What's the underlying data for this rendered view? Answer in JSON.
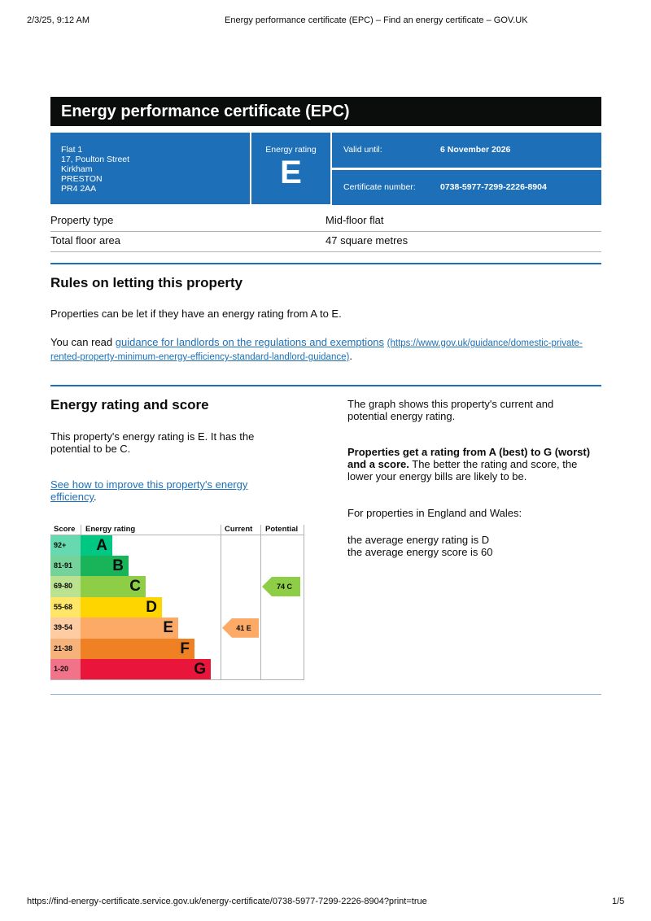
{
  "browser": {
    "datetime": "2/3/25, 9:12 AM",
    "page_title": "Energy performance certificate (EPC) – Find an energy certificate – GOV.UK",
    "url": "https://find-energy-certificate.service.gov.uk/energy-certificate/0738-5977-7299-2226-8904?print=true",
    "page_number": "1/5"
  },
  "certificate": {
    "title": "Energy performance certificate (EPC)",
    "address": [
      "Flat 1",
      "17, Poulton Street",
      "Kirkham",
      "PRESTON",
      "PR4 2AA"
    ],
    "rating_label": "Energy rating",
    "rating": "E",
    "valid_until_label": "Valid until:",
    "valid_until": "6 November 2026",
    "cert_number_label": "Certificate number:",
    "cert_number": "0738-5977-7299-2226-8904"
  },
  "property": [
    {
      "label": "Property type",
      "value": "Mid-floor flat"
    },
    {
      "label": "Total floor area",
      "value": "47 square metres"
    }
  ],
  "rules": {
    "heading": "Rules on letting this property",
    "para1": "Properties can be let if they have an energy rating from A to E.",
    "para2_prefix": "You can read ",
    "link": "guidance for landlords on the regulations and exemptions",
    "link_url": "(https://www.gov.uk/guidance/domestic-private-rented-property-minimum-energy-efficiency-standard-landlord-guidance)",
    "para2_suffix": "."
  },
  "energy": {
    "heading": "Energy rating and score",
    "para1": "This property's energy rating is E. It has the potential to be C.",
    "link": "See how to improve this property's energy efficiency",
    "link_suffix": ".",
    "right_para1": "The graph shows this property's current and potential energy rating.",
    "right_bold": "Properties get a rating from A (best) to G (worst) and a score.",
    "right_para2": " The better the rating and score, the lower your energy bills are likely to be.",
    "right_para3": "For properties in England and Wales:",
    "avg_rating": "the average energy rating is D",
    "avg_score": "the average energy score is 60"
  },
  "chart_data": {
    "type": "table",
    "headers": [
      "Score",
      "Energy rating",
      "Current",
      "Potential"
    ],
    "bands": [
      {
        "score": "92+",
        "letter": "A",
        "color": "#00c781",
        "light": "#66d9b0"
      },
      {
        "score": "81-91",
        "letter": "B",
        "color": "#19b459",
        "light": "#75d29b"
      },
      {
        "score": "69-80",
        "letter": "C",
        "color": "#8dce46",
        "light": "#bbe290"
      },
      {
        "score": "55-68",
        "letter": "D",
        "color": "#ffd500",
        "light": "#ffe666"
      },
      {
        "score": "39-54",
        "letter": "E",
        "color": "#fcaa65",
        "light": "#fdcca3"
      },
      {
        "score": "21-38",
        "letter": "F",
        "color": "#ef8023",
        "light": "#f5b37b"
      },
      {
        "score": "1-20",
        "letter": "G",
        "color": "#e9153b",
        "light": "#f27389"
      }
    ],
    "current": {
      "score": 41,
      "letter": "E",
      "label": "41  E"
    },
    "potential": {
      "score": 74,
      "letter": "C",
      "label": "74  C"
    }
  }
}
